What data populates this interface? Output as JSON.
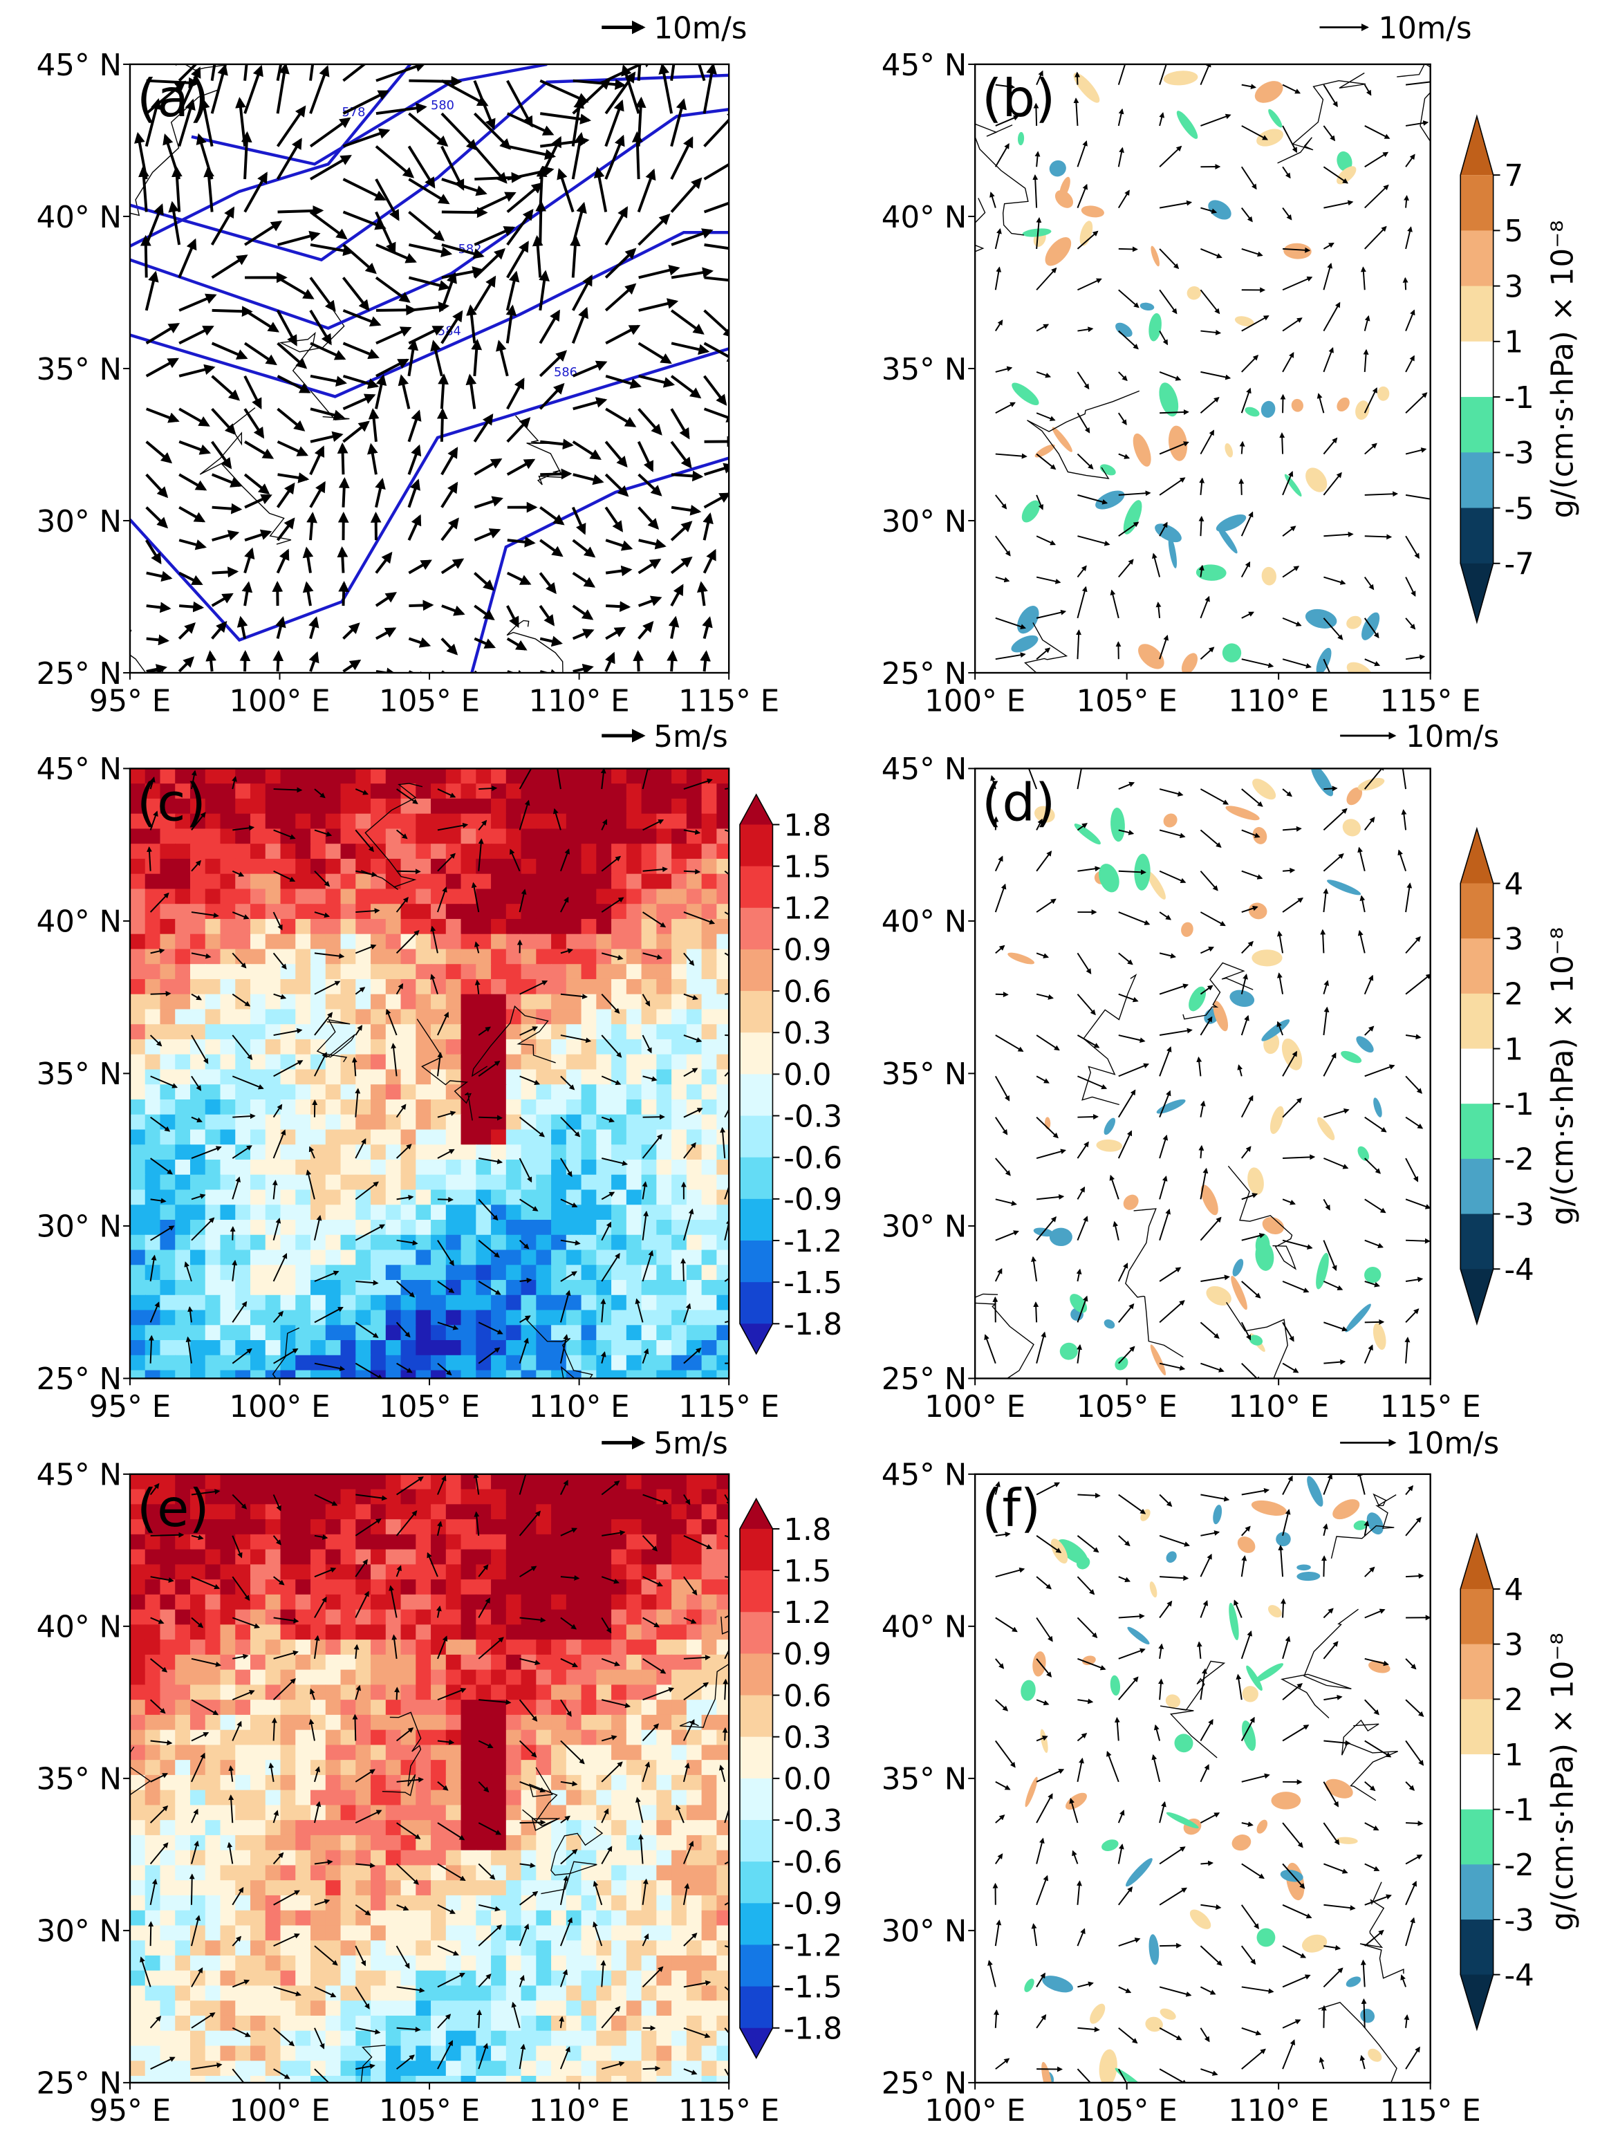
{
  "panels": [
    {
      "label": "(a)",
      "vector_ref": "10m/s",
      "xlim": [
        95,
        115
      ],
      "ylim": [
        25,
        45
      ],
      "xticks": [
        {
          "value": 95,
          "label": "95° E"
        },
        {
          "value": 100,
          "label": "100° E"
        },
        {
          "value": 105,
          "label": "105° E"
        },
        {
          "value": 110,
          "label": "110° E"
        },
        {
          "value": 115,
          "label": "115° E"
        }
      ],
      "yticks": [
        {
          "value": 25,
          "label": "25° N"
        },
        {
          "value": 30,
          "label": "30° N"
        },
        {
          "value": 35,
          "label": "35° N"
        },
        {
          "value": 40,
          "label": "40° N"
        },
        {
          "value": 45,
          "label": "45° N"
        }
      ],
      "contour_labels": [
        "578",
        "580",
        "582",
        "584",
        "586"
      ],
      "contour_color": "#1a1acc"
    },
    {
      "label": "(b)",
      "vector_ref": "10m/s",
      "xlim": [
        100,
        115
      ],
      "ylim": [
        25,
        45
      ],
      "xticks": [
        {
          "value": 100,
          "label": "100° E"
        },
        {
          "value": 105,
          "label": "105° E"
        },
        {
          "value": 110,
          "label": "110° E"
        },
        {
          "value": 115,
          "label": "115° E"
        }
      ],
      "yticks": [
        {
          "value": 25,
          "label": "25° N"
        },
        {
          "value": 30,
          "label": "30° N"
        },
        {
          "value": 35,
          "label": "35° N"
        },
        {
          "value": 40,
          "label": "40° N"
        },
        {
          "value": 45,
          "label": "45° N"
        }
      ],
      "colorbar": {
        "label": "g/(cm·s·hPa) × 10⁻⁸",
        "ticks": [
          7,
          5,
          3,
          1,
          -1,
          -3,
          -5,
          -7
        ],
        "colors": [
          "#c0601a",
          "#d9803a",
          "#f3b07a",
          "#f9dca2",
          "#ffffff",
          "#52e3a3",
          "#4aa3c6",
          "#0b3a5c",
          "#072c48"
        ]
      }
    },
    {
      "label": "(c)",
      "vector_ref": "5m/s",
      "xlim": [
        95,
        115
      ],
      "ylim": [
        25,
        45
      ],
      "xticks": [
        {
          "value": 95,
          "label": "95° E"
        },
        {
          "value": 100,
          "label": "100° E"
        },
        {
          "value": 105,
          "label": "105° E"
        },
        {
          "value": 110,
          "label": "110° E"
        },
        {
          "value": 115,
          "label": "115° E"
        }
      ],
      "yticks": [
        {
          "value": 25,
          "label": "25° N"
        },
        {
          "value": 30,
          "label": "30° N"
        },
        {
          "value": 35,
          "label": "35° N"
        },
        {
          "value": 40,
          "label": "40° N"
        },
        {
          "value": 45,
          "label": "45° N"
        }
      ],
      "colorbar": {
        "ticks": [
          1.8,
          1.5,
          1.2,
          0.9,
          0.6,
          0.3,
          {
            "value": 0,
            "label": "0.0"
          },
          -0.3,
          -0.6,
          -0.9,
          -1.2,
          -1.5,
          -1.8
        ],
        "colors": [
          "#a8001e",
          "#d2141e",
          "#f03c3c",
          "#f77a6e",
          "#f5a57a",
          "#fad2a0",
          "#fff5dc",
          "#dcfaff",
          "#aaf0ff",
          "#64dcf5",
          "#1eb4f0",
          "#1478e6",
          "#1446d2",
          "#1e1eb4"
        ]
      }
    },
    {
      "label": "(d)",
      "vector_ref": "10m/s",
      "xlim": [
        100,
        115
      ],
      "ylim": [
        25,
        45
      ],
      "xticks": [
        {
          "value": 100,
          "label": "100° E"
        },
        {
          "value": 105,
          "label": "105° E"
        },
        {
          "value": 110,
          "label": "110° E"
        },
        {
          "value": 115,
          "label": "115° E"
        }
      ],
      "yticks": [
        {
          "value": 25,
          "label": "25° N"
        },
        {
          "value": 30,
          "label": "30° N"
        },
        {
          "value": 35,
          "label": "35° N"
        },
        {
          "value": 40,
          "label": "40° N"
        },
        {
          "value": 45,
          "label": "45° N"
        }
      ],
      "colorbar": {
        "label": "g/(cm·s·hPa) × 10⁻⁸",
        "ticks": [
          4,
          3,
          2,
          1,
          -1,
          -2,
          -3,
          -4
        ],
        "colors": [
          "#c0601a",
          "#d9803a",
          "#f3b07a",
          "#f9dca2",
          "#ffffff",
          "#52e3a3",
          "#4aa3c6",
          "#0b3a5c",
          "#072c48"
        ]
      }
    },
    {
      "label": "(e)",
      "vector_ref": "5m/s",
      "xlim": [
        95,
        115
      ],
      "ylim": [
        25,
        45
      ],
      "xticks": [
        {
          "value": 95,
          "label": "95° E"
        },
        {
          "value": 100,
          "label": "100° E"
        },
        {
          "value": 105,
          "label": "105° E"
        },
        {
          "value": 110,
          "label": "110° E"
        },
        {
          "value": 115,
          "label": "115° E"
        }
      ],
      "yticks": [
        {
          "value": 25,
          "label": "25° N"
        },
        {
          "value": 30,
          "label": "30° N"
        },
        {
          "value": 35,
          "label": "35° N"
        },
        {
          "value": 40,
          "label": "40° N"
        },
        {
          "value": 45,
          "label": "45° N"
        }
      ],
      "colorbar": {
        "ticks": [
          1.8,
          1.5,
          1.2,
          0.9,
          0.6,
          0.3,
          {
            "value": 0,
            "label": "0.0"
          },
          -0.3,
          -0.6,
          -0.9,
          -1.2,
          -1.5,
          -1.8
        ],
        "colors": [
          "#a8001e",
          "#d2141e",
          "#f03c3c",
          "#f77a6e",
          "#f5a57a",
          "#fad2a0",
          "#fff5dc",
          "#dcfaff",
          "#aaf0ff",
          "#64dcf5",
          "#1eb4f0",
          "#1478e6",
          "#1446d2",
          "#1e1eb4"
        ]
      }
    },
    {
      "label": "(f)",
      "vector_ref": "10m/s",
      "xlim": [
        100,
        115
      ],
      "ylim": [
        25,
        45
      ],
      "xticks": [
        {
          "value": 100,
          "label": "100° E"
        },
        {
          "value": 105,
          "label": "105° E"
        },
        {
          "value": 110,
          "label": "110° E"
        },
        {
          "value": 115,
          "label": "115° E"
        }
      ],
      "yticks": [
        {
          "value": 25,
          "label": "25° N"
        },
        {
          "value": 30,
          "label": "30° N"
        },
        {
          "value": 35,
          "label": "35° N"
        },
        {
          "value": 40,
          "label": "40° N"
        },
        {
          "value": 45,
          "label": "45° N"
        }
      ],
      "colorbar": {
        "label": "g/(cm·s·hPa) × 10⁻⁸",
        "ticks": [
          4,
          3,
          2,
          1,
          -1,
          -2,
          -3,
          -4
        ],
        "colors": [
          "#c0601a",
          "#d9803a",
          "#f3b07a",
          "#f9dca2",
          "#ffffff",
          "#52e3a3",
          "#4aa3c6",
          "#0b3a5c",
          "#072c48"
        ]
      }
    }
  ]
}
